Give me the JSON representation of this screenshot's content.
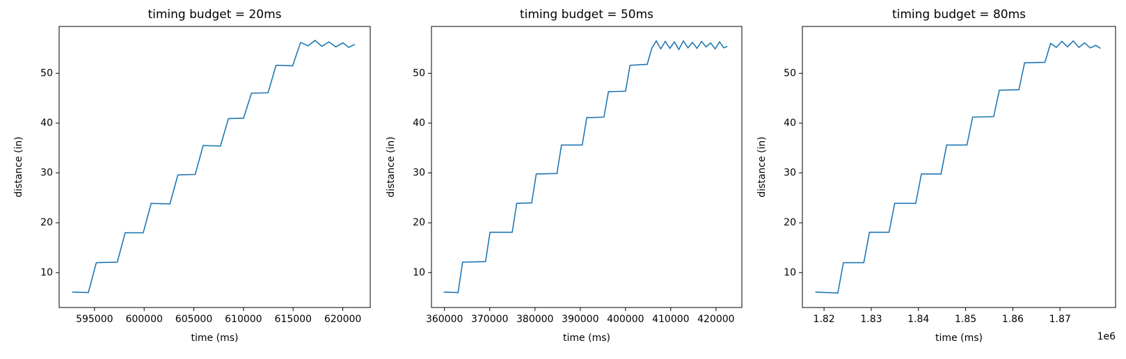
{
  "chart_data": [
    {
      "type": "line",
      "title": "timing budget = 20ms",
      "x_label": "time (ms)",
      "y_label": "distance (in)",
      "x": [
        592750,
        594380,
        595180,
        597290,
        598090,
        599905,
        600705,
        602594,
        603394,
        605137,
        605937,
        607681,
        608481,
        610006,
        610806,
        612477,
        613277,
        614948,
        615748,
        616500,
        617200,
        617900,
        618600,
        619300,
        620000,
        620600,
        621200
      ],
      "series": [
        {
          "color": "#1f77b4",
          "values": [
            6.1,
            6.0,
            12.0,
            12.1,
            18.0,
            18.0,
            23.9,
            23.8,
            29.6,
            29.7,
            35.5,
            35.4,
            40.9,
            41.0,
            46.0,
            46.1,
            51.6,
            51.5,
            56.2,
            55.5,
            56.6,
            55.4,
            56.3,
            55.3,
            56.1,
            55.2,
            55.8
          ]
        }
      ],
      "xlim": [
        591439,
        622762
      ],
      "xticks": [
        595000,
        600000,
        605000,
        610000,
        615000,
        620000
      ],
      "ylim": [
        3,
        59.4
      ],
      "yticks": [
        10,
        20,
        30,
        40,
        50
      ]
    },
    {
      "type": "line",
      "title": "timing budget = 50ms",
      "x_label": "time (ms)",
      "y_label": "distance (in)",
      "x": [
        359840,
        363010,
        364010,
        369070,
        370070,
        374970,
        375970,
        379280,
        380280,
        384860,
        385860,
        390440,
        391440,
        395230,
        396230,
        400010,
        401010,
        404800,
        405800,
        406800,
        407800,
        408800,
        409800,
        410800,
        411800,
        412800,
        413800,
        414800,
        415800,
        416800,
        417800,
        418800,
        419800,
        420800,
        421700,
        422500
      ],
      "series": [
        {
          "color": "#1f77b4",
          "values": [
            6.1,
            6.0,
            12.1,
            12.2,
            18.1,
            18.1,
            23.9,
            24.0,
            29.8,
            29.9,
            35.6,
            35.6,
            41.1,
            41.2,
            46.3,
            46.4,
            51.6,
            51.8,
            55.0,
            56.5,
            54.9,
            56.4,
            55.0,
            56.3,
            54.8,
            56.5,
            55.1,
            56.2,
            55.0,
            56.4,
            55.3,
            56.1,
            54.9,
            56.3,
            55.1,
            55.4
          ]
        }
      ],
      "xlim": [
        357130,
        425710
      ],
      "xticks": [
        360000,
        370000,
        380000,
        390000,
        400000,
        410000,
        420000
      ],
      "ylim": [
        3,
        59.4
      ],
      "yticks": [
        10,
        20,
        30,
        40,
        50
      ]
    },
    {
      "type": "line",
      "title": "timing budget = 80ms",
      "x_label": "time (ms)",
      "y_label": "distance (in)",
      "x_offset_text": "1e6",
      "x": [
        1818160,
        1822910,
        1824110,
        1828420,
        1829620,
        1833770,
        1834970,
        1839430,
        1840630,
        1844780,
        1845980,
        1850280,
        1851480,
        1855940,
        1857140,
        1861290,
        1862490,
        1866800,
        1868000,
        1869200,
        1870400,
        1871600,
        1872800,
        1874000,
        1875200,
        1876400,
        1877600,
        1878560
      ],
      "series": [
        {
          "color": "#1f77b4",
          "values": [
            6.1,
            5.9,
            12.0,
            12.0,
            18.1,
            18.1,
            23.9,
            23.9,
            29.8,
            29.8,
            35.6,
            35.6,
            41.2,
            41.3,
            46.6,
            46.7,
            52.1,
            52.2,
            56.0,
            55.2,
            56.4,
            55.3,
            56.5,
            55.2,
            56.1,
            55.1,
            55.6,
            55.0
          ]
        }
      ],
      "xlim": [
        1815410,
        1881770
      ],
      "xticks": [
        {
          "value": 1820000,
          "label": "1.82"
        },
        {
          "value": 1830000,
          "label": "1.83"
        },
        {
          "value": 1840000,
          "label": "1.84"
        },
        {
          "value": 1850000,
          "label": "1.85"
        },
        {
          "value": 1860000,
          "label": "1.86"
        },
        {
          "value": 1870000,
          "label": "1.87"
        }
      ],
      "ylim": [
        3,
        59.4
      ],
      "yticks": [
        10,
        20,
        30,
        40,
        50
      ]
    }
  ]
}
